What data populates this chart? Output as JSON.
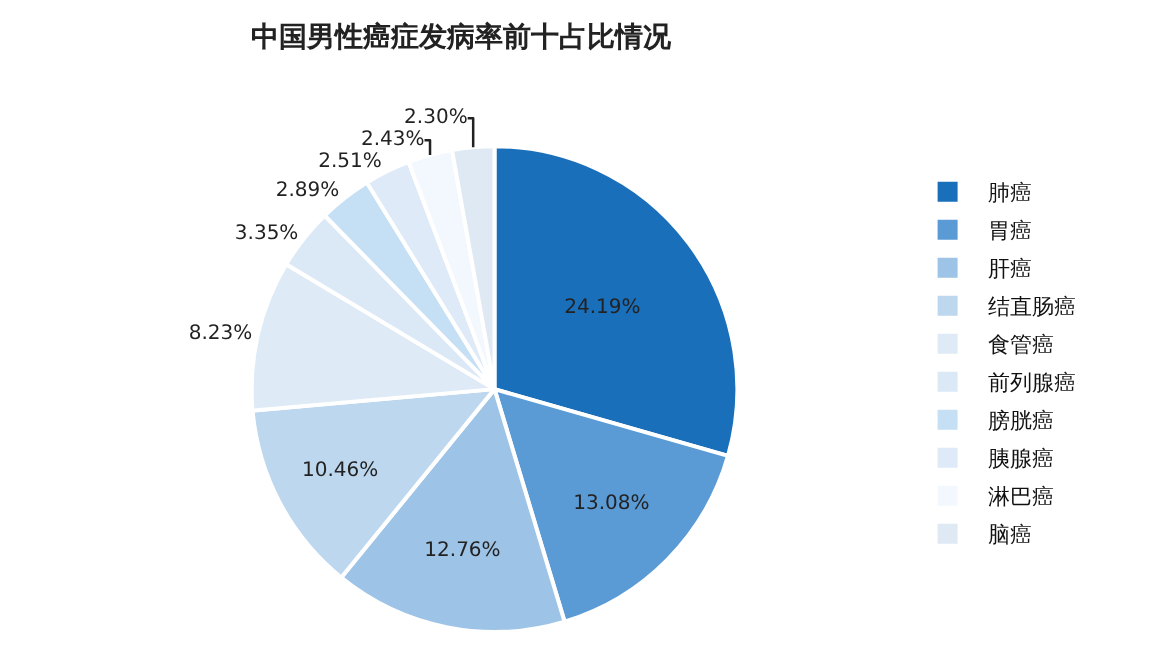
{
  "chart_data": {
    "type": "pie",
    "title": "中国男性癌症发病率前十占比情况",
    "categories": [
      "肺癌",
      "胃癌",
      "肝癌",
      "结直肠癌",
      "食管癌",
      "前列腺癌",
      "膀胱癌",
      "胰腺癌",
      "淋巴癌",
      "脑癌"
    ],
    "values": [
      24.19,
      13.08,
      12.76,
      10.46,
      8.23,
      3.35,
      2.89,
      2.51,
      2.43,
      2.3
    ],
    "value_labels": [
      "24.19%",
      "13.08%",
      "12.76%",
      "10.46%",
      "8.23%",
      "3.35%",
      "2.89%",
      "2.51%",
      "2.43%",
      "2.30%"
    ],
    "colors": [
      "#1a6fba",
      "#5b9bd5",
      "#9dc3e6",
      "#bdd7ee",
      "#deebf7",
      "#dbe8f6",
      "#c5dff5",
      "#deeaf7",
      "#f2f8fd",
      "#dfe9f4"
    ],
    "legend": "right"
  }
}
